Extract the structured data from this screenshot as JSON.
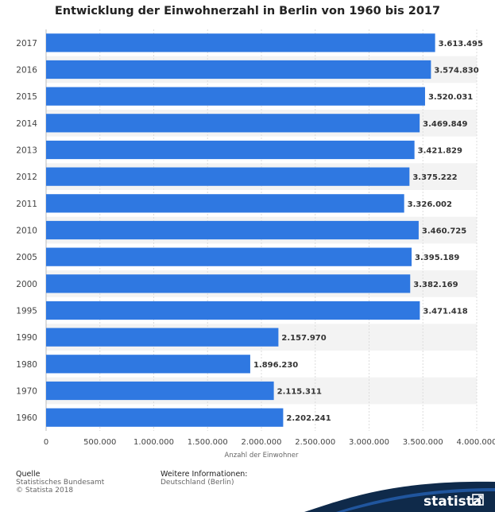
{
  "chart_data": {
    "type": "bar",
    "orientation": "horizontal",
    "title": "Entwicklung der Einwohnerzahl in Berlin von 1960 bis 2017",
    "xlabel": "Anzahl der Einwohner",
    "ylabel": "",
    "xlim": [
      0,
      4000000
    ],
    "x_ticks": [
      0,
      500000,
      1000000,
      1500000,
      2000000,
      2500000,
      3000000,
      3500000,
      4000000
    ],
    "x_tick_labels": [
      "0",
      "500.000",
      "1.000.000",
      "1.500.000",
      "2.000.000",
      "2.500.000",
      "3.000.000",
      "3.500.000",
      "4.000.000"
    ],
    "categories": [
      "2017",
      "2016",
      "2015",
      "2014",
      "2013",
      "2012",
      "2011",
      "2010",
      "2005",
      "2000",
      "1995",
      "1990",
      "1980",
      "1970",
      "1960"
    ],
    "values": [
      3613495,
      3574830,
      3520031,
      3469849,
      3421829,
      3375222,
      3326002,
      3460725,
      3395189,
      3382169,
      3471418,
      2157970,
      1896230,
      2115311,
      2202241
    ],
    "value_labels": [
      "3.613.495",
      "3.574.830",
      "3.520.031",
      "3.469.849",
      "3.421.829",
      "3.375.222",
      "3.326.002",
      "3.460.725",
      "3.395.189",
      "3.382.169",
      "3.471.418",
      "2.157.970",
      "1.896.230",
      "2.115.311",
      "2.202.241"
    ],
    "bar_color": "#2f78e1",
    "grid": true,
    "legend": "none"
  },
  "footer": {
    "source_label": "Quelle",
    "source_lines": [
      "Statistisches Bundesamt",
      "© Statista 2018"
    ],
    "info_label": "Weitere Informationen:",
    "info_lines": [
      "Deutschland (Berlin)"
    ]
  },
  "brand": {
    "name": "statista",
    "color": "#0f2a4a",
    "accent": "#2f78e1"
  }
}
